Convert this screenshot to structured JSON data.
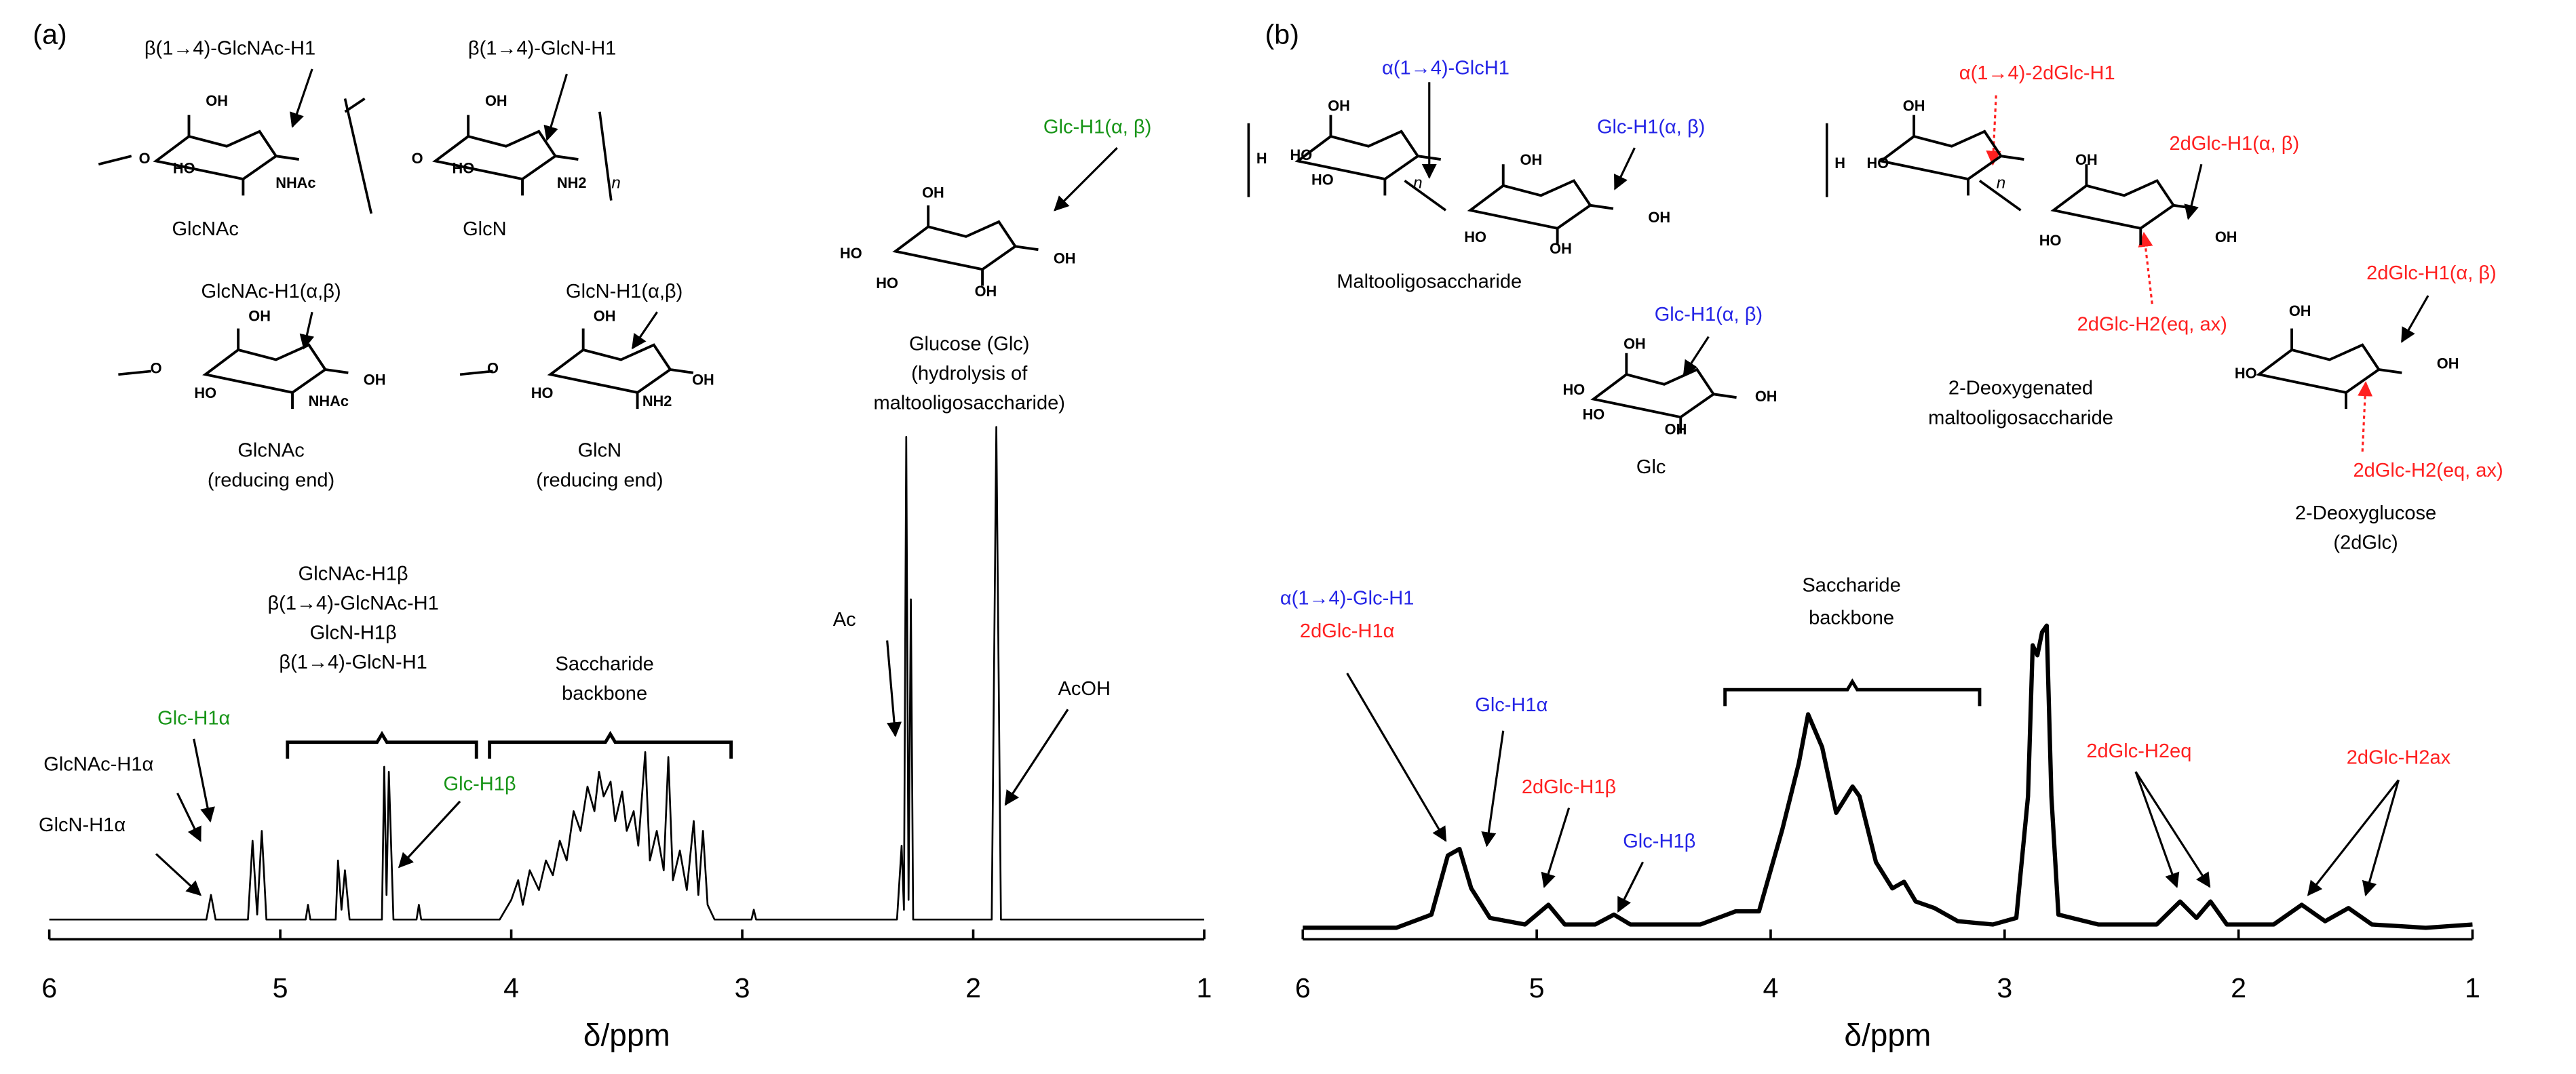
{
  "chart_data": [
    {
      "type": "line",
      "panel_label": "(a)",
      "xlabel": "δ/ppm",
      "xlim": [
        6,
        1
      ],
      "xticks": [
        6,
        5,
        4,
        3,
        2,
        1
      ],
      "ylim": [
        0,
        100
      ],
      "color": "#000000",
      "x": [
        6.0,
        5.32,
        5.3,
        5.28,
        5.14,
        5.12,
        5.1,
        5.08,
        5.06,
        4.89,
        4.88,
        4.87,
        4.76,
        4.75,
        4.735,
        4.72,
        4.7,
        4.56,
        4.55,
        4.54,
        4.53,
        4.51,
        4.41,
        4.4,
        4.39,
        4.05,
        4.0,
        3.97,
        3.95,
        3.92,
        3.88,
        3.85,
        3.82,
        3.79,
        3.76,
        3.73,
        3.7,
        3.67,
        3.64,
        3.62,
        3.6,
        3.57,
        3.55,
        3.52,
        3.5,
        3.47,
        3.45,
        3.42,
        3.4,
        3.37,
        3.34,
        3.32,
        3.3,
        3.27,
        3.24,
        3.21,
        3.19,
        3.17,
        3.15,
        3.12,
        2.96,
        2.95,
        2.94,
        2.33,
        2.31,
        2.3,
        2.29,
        2.28,
        2.27,
        2.26,
        1.92,
        1.9,
        1.88,
        1.0
      ],
      "values": [
        0,
        0,
        5,
        0,
        0,
        16,
        1,
        18,
        0,
        0,
        3,
        0,
        0,
        12,
        2,
        10,
        0,
        0,
        31,
        5,
        30,
        0,
        0,
        3,
        0,
        0,
        4,
        8,
        3,
        10,
        6,
        12,
        9,
        16,
        12,
        22,
        18,
        27,
        22,
        30,
        25,
        28,
        20,
        26,
        18,
        22,
        15,
        34,
        12,
        18,
        10,
        33,
        8,
        14,
        6,
        20,
        5,
        18,
        3,
        0,
        0,
        2,
        0,
        0,
        15,
        2,
        98,
        4,
        65,
        0,
        0,
        100,
        0,
        0
      ],
      "annotations": [
        {
          "text": "β(1→4)-GlcNAc-H1"
        },
        {
          "text": "β(1→4)-GlcN-H1"
        },
        {
          "text": "GlcNAc"
        },
        {
          "text": "GlcN"
        },
        {
          "text": "n"
        },
        {
          "text": "GlcNAc-H1(α,β)"
        },
        {
          "text": "GlcN-H1(α,β)"
        },
        {
          "text": "GlcNAc"
        },
        {
          "text": "(reducing end)"
        },
        {
          "text": "GlcN"
        },
        {
          "text": "(reducing end)"
        },
        {
          "text": "Glc-H1(α, β)",
          "color": "#169416"
        },
        {
          "text": "Glucose (Glc)"
        },
        {
          "text": "(hydrolysis of"
        },
        {
          "text": "maltooligosaccharide)"
        },
        {
          "text": "GlcNAc-H1β"
        },
        {
          "text": "β(1→4)-GlcNAc-H1"
        },
        {
          "text": "GlcN-H1β"
        },
        {
          "text": "β(1→4)-GlcN-H1"
        },
        {
          "text": "Saccharide"
        },
        {
          "text": "backbone"
        },
        {
          "text": "Ac"
        },
        {
          "text": "AcOH"
        },
        {
          "text": "Glc-H1α",
          "color": "#169416"
        },
        {
          "text": "GlcNAc-H1α"
        },
        {
          "text": "GlcN-H1α"
        },
        {
          "text": "Glc-H1β",
          "color": "#169416"
        },
        {
          "text": "OH"
        },
        {
          "text": "HO"
        },
        {
          "text": "NHAc"
        },
        {
          "text": "O"
        },
        {
          "text": "OH"
        },
        {
          "text": "HO"
        },
        {
          "text": "NH2"
        },
        {
          "text": "O"
        },
        {
          "text": "OH"
        },
        {
          "text": "HO"
        },
        {
          "text": "NHAc"
        },
        {
          "text": "OH"
        },
        {
          "text": "O"
        },
        {
          "text": "OH"
        },
        {
          "text": "HO"
        },
        {
          "text": "NH2"
        },
        {
          "text": "OH"
        },
        {
          "text": "O"
        },
        {
          "text": "OH"
        },
        {
          "text": "HO"
        },
        {
          "text": "HO"
        },
        {
          "text": "OH"
        },
        {
          "text": "OH"
        }
      ]
    },
    {
      "type": "line",
      "panel_label": "(b)",
      "xlabel": "δ/ppm",
      "xlim": [
        6,
        1
      ],
      "xticks": [
        6,
        5,
        4,
        3,
        2,
        1
      ],
      "ylim": [
        0,
        100
      ],
      "color": "#000000",
      "x": [
        6.0,
        5.6,
        5.45,
        5.38,
        5.33,
        5.28,
        5.2,
        5.05,
        4.95,
        4.88,
        4.75,
        4.67,
        4.6,
        4.3,
        4.15,
        4.05,
        3.95,
        3.88,
        3.84,
        3.78,
        3.72,
        3.65,
        3.62,
        3.55,
        3.48,
        3.43,
        3.38,
        3.3,
        3.2,
        3.05,
        2.95,
        2.9,
        2.88,
        2.86,
        2.84,
        2.82,
        2.8,
        2.77,
        2.6,
        2.35,
        2.25,
        2.18,
        2.12,
        2.05,
        1.85,
        1.73,
        1.63,
        1.53,
        1.43,
        1.2,
        1.0
      ],
      "values": [
        0,
        0,
        4,
        22,
        24,
        12,
        3,
        1,
        7,
        1,
        1,
        4,
        1,
        1,
        5,
        5,
        30,
        50,
        65,
        55,
        35,
        43,
        40,
        20,
        12,
        14,
        8,
        6,
        2,
        1,
        3,
        40,
        86,
        83,
        90,
        92,
        40,
        4,
        1,
        1,
        8,
        3,
        8,
        1,
        1,
        7,
        2,
        6,
        1,
        0,
        1
      ],
      "annotations": [
        {
          "text": "α(1→4)-GlcH1",
          "color": "#2424e6"
        },
        {
          "text": "Glc-H1(α, β)",
          "color": "#2424e6"
        },
        {
          "text": "n"
        },
        {
          "text": "Maltooligosaccharide"
        },
        {
          "text": "Glc-H1(α, β)",
          "color": "#2424e6"
        },
        {
          "text": "Glc"
        },
        {
          "text": "α(1→4)-2dGlc-H1",
          "color": "#ff2020"
        },
        {
          "text": "2dGlc-H1(α, β)",
          "color": "#ff2020"
        },
        {
          "text": "n"
        },
        {
          "text": "2dGlc-H2(eq, ax)",
          "color": "#ff2020"
        },
        {
          "text": "2-Deoxygenated"
        },
        {
          "text": "maltooligosaccharide"
        },
        {
          "text": "2dGlc-H1(α, β)",
          "color": "#ff2020"
        },
        {
          "text": "2dGlc-H2(eq, ax)",
          "color": "#ff2020"
        },
        {
          "text": "2-Deoxyglucose"
        },
        {
          "text": "(2dGlc)"
        },
        {
          "text": "α(1→4)-Glc-H1",
          "color": "#2424e6"
        },
        {
          "text": "2dGlc-H1α",
          "color": "#ff2020"
        },
        {
          "text": "Saccharide"
        },
        {
          "text": "backbone"
        },
        {
          "text": "Glc-H1α",
          "color": "#2424e6"
        },
        {
          "text": "2dGlc-H1β",
          "color": "#ff2020"
        },
        {
          "text": "Glc-H1β",
          "color": "#2424e6"
        },
        {
          "text": "2dGlc-H2eq",
          "color": "#ff2020"
        },
        {
          "text": "2dGlc-H2ax",
          "color": "#ff2020"
        },
        {
          "text": "OH"
        },
        {
          "text": "HO"
        },
        {
          "text": "HO"
        },
        {
          "text": "H"
        },
        {
          "text": "OH"
        },
        {
          "text": "HO"
        },
        {
          "text": "OH"
        },
        {
          "text": "OH"
        },
        {
          "text": "OH"
        },
        {
          "text": "HO"
        },
        {
          "text": "HO"
        },
        {
          "text": "OH"
        },
        {
          "text": "OH"
        },
        {
          "text": "OH"
        },
        {
          "text": "HO"
        },
        {
          "text": "H"
        },
        {
          "text": "OH"
        },
        {
          "text": "HO"
        },
        {
          "text": "OH"
        },
        {
          "text": "OH"
        },
        {
          "text": "HO"
        },
        {
          "text": "OH"
        }
      ]
    }
  ]
}
